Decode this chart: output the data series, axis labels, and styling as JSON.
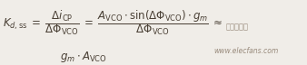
{
  "line1": "$K_{d,\\mathrm{ss}} \\;=\\; \\dfrac{\\Delta i_{\\mathrm{CP}}}{\\Delta \\Phi_{\\mathrm{VCO}}} \\;=\\; \\dfrac{A_{\\mathrm{VCO}} \\cdot \\sin(\\Delta\\Phi_{\\mathrm{VCO}}) \\cdot g_m}{\\Delta\\Phi_{\\mathrm{VCO}}} \\;\\approx$",
  "line2": "$g_m \\cdot A_{\\mathrm{VCO}}$",
  "watermark_line1": "电子发烧友",
  "watermark_line2": "www.elecfans.com",
  "bg_color": "#f0ede8",
  "text_color": "#4a4035",
  "watermark_color": "#8a7a6a",
  "fontsize_main": 8.5,
  "fontsize_watermark": 5.5,
  "fig_width": 3.38,
  "fig_height": 0.72,
  "dpi": 100
}
